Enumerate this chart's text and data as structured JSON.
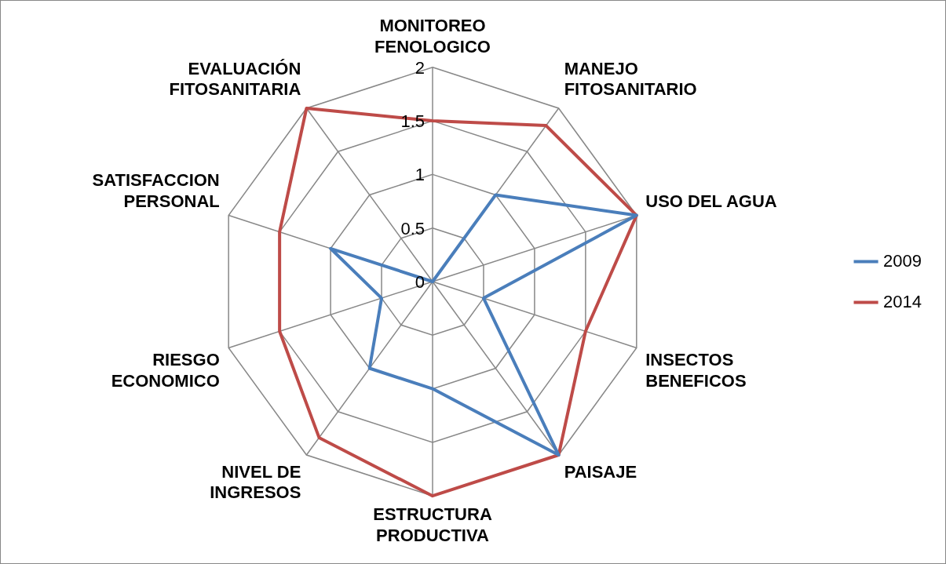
{
  "chart_data": {
    "type": "radar",
    "categories": [
      "MONITOREO FENOLOGICO",
      "MANEJO FITOSANITARIO",
      "USO DEL AGUA",
      "INSECTOS BENEFICOS",
      "PAISAJE",
      "ESTRUCTURA PRODUCTIVA",
      "NIVEL DE INGRESOS",
      "RIESGO ECONOMICO",
      "SATISFACCION PERSONAL",
      "EVALUACIÓN FITOSANITARIA"
    ],
    "series": [
      {
        "name": "2009",
        "color": "#4a7ebb",
        "values": [
          0,
          1,
          2,
          0.5,
          2,
          1,
          1,
          0.5,
          1,
          0
        ]
      },
      {
        "name": "2014",
        "color": "#be4b48",
        "values": [
          1.5,
          1.8,
          2,
          1.5,
          2,
          2,
          1.8,
          1.5,
          1.5,
          2
        ]
      }
    ],
    "ylim": [
      0,
      2
    ],
    "yticks": [
      0,
      0.5,
      1,
      1.5,
      2
    ],
    "grid": true,
    "legend": "right",
    "marker": "none",
    "line_style": "solid"
  }
}
